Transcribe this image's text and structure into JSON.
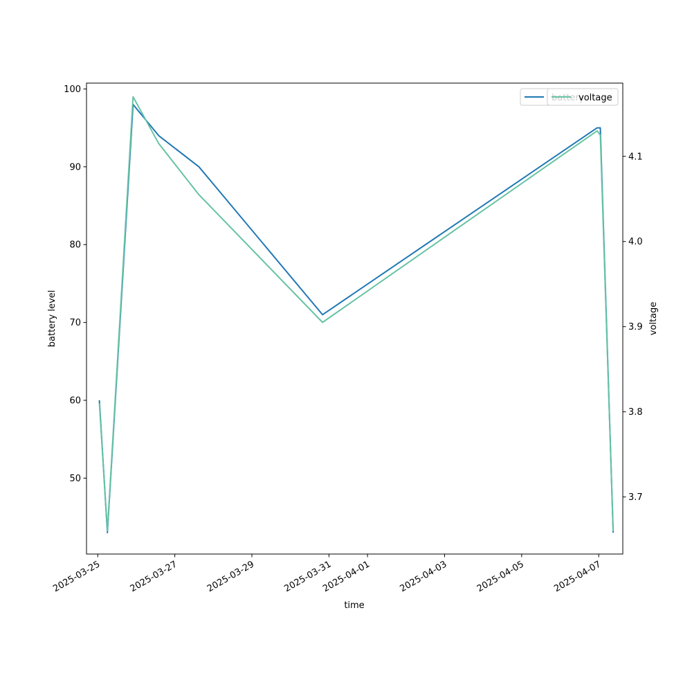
{
  "chart_data": {
    "type": "line",
    "title": "",
    "xlabel": "time",
    "ylabel_left": "battery level",
    "ylabel_right": "voltage",
    "x_ticks": [
      "2025-03-25",
      "2025-03-27",
      "2025-03-29",
      "2025-03-31",
      "2025-04-01",
      "2025-04-03",
      "2025-04-05",
      "2025-04-07"
    ],
    "y_left_ticks": [
      "50",
      "60",
      "70",
      "80",
      "90",
      "100"
    ],
    "y_right_ticks": [
      "3.7",
      "3.8",
      "3.9",
      "4.0",
      "4.1"
    ],
    "xlim": [
      "2025-03-24T17:00",
      "2025-04-07T15:00"
    ],
    "ylim_left": [
      40.25,
      100.75
    ],
    "ylim_right": [
      3.633,
      4.186
    ],
    "grid": false,
    "legend_position": "top-right",
    "series": [
      {
        "name": "battery",
        "axis": "left",
        "color": "#1f77b4",
        "points": [
          {
            "x": "2025-03-25T01:00",
            "y": 60
          },
          {
            "x": "2025-03-25T06:00",
            "y": 43
          },
          {
            "x": "2025-03-25T22:00",
            "y": 98
          },
          {
            "x": "2025-03-26T14:00",
            "y": 94
          },
          {
            "x": "2025-03-27T15:00",
            "y": 90
          },
          {
            "x": "2025-03-30T20:00",
            "y": 71
          },
          {
            "x": "2025-04-06T23:00",
            "y": 95
          },
          {
            "x": "2025-04-07T01:00",
            "y": 95
          },
          {
            "x": "2025-04-07T09:00",
            "y": 43
          }
        ]
      },
      {
        "name": "voltage",
        "axis": "right",
        "color": "#66c2a5",
        "points": [
          {
            "x": "2025-03-25T01:00",
            "y": 3.81
          },
          {
            "x": "2025-03-25T06:00",
            "y": 3.66
          },
          {
            "x": "2025-03-25T22:00",
            "y": 4.17
          },
          {
            "x": "2025-03-26T14:00",
            "y": 4.115
          },
          {
            "x": "2025-03-27T15:00",
            "y": 4.055
          },
          {
            "x": "2025-03-30T20:00",
            "y": 3.905
          },
          {
            "x": "2025-04-06T23:00",
            "y": 4.13
          },
          {
            "x": "2025-04-07T01:00",
            "y": 4.125
          },
          {
            "x": "2025-04-07T09:00",
            "y": 3.66
          }
        ]
      }
    ],
    "legends": [
      {
        "entries": [
          {
            "label": "battery",
            "color": "#1f77b4"
          }
        ]
      },
      {
        "entries": [
          {
            "label": "voltage",
            "color": "#66c2a5"
          }
        ]
      }
    ]
  }
}
